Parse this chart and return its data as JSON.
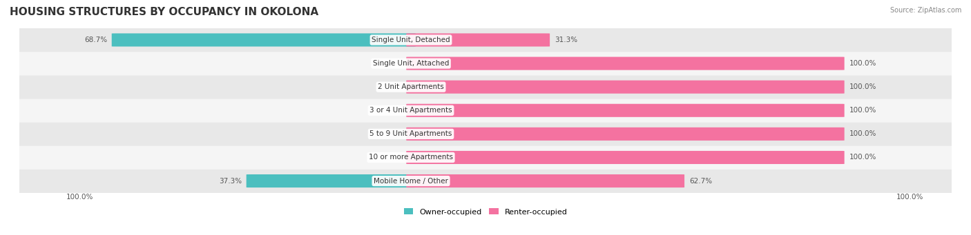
{
  "title": "HOUSING STRUCTURES BY OCCUPANCY IN OKOLONA",
  "source": "Source: ZipAtlas.com",
  "categories": [
    "Single Unit, Detached",
    "Single Unit, Attached",
    "2 Unit Apartments",
    "3 or 4 Unit Apartments",
    "5 to 9 Unit Apartments",
    "10 or more Apartments",
    "Mobile Home / Other"
  ],
  "owner_pct": [
    68.7,
    0.0,
    0.0,
    0.0,
    0.0,
    0.0,
    37.3
  ],
  "renter_pct": [
    31.3,
    100.0,
    100.0,
    100.0,
    100.0,
    100.0,
    62.7
  ],
  "owner_color": "#4BBFBF",
  "renter_color": "#F472A0",
  "bar_bg_color": "#F0F0F0",
  "bar_height": 0.55,
  "title_fontsize": 11,
  "label_fontsize": 7.5,
  "value_fontsize": 7.5,
  "legend_fontsize": 8,
  "source_fontsize": 7,
  "background_color": "#FFFFFF",
  "row_bg_colors": [
    "#E8E8E8",
    "#F5F5F5"
  ]
}
